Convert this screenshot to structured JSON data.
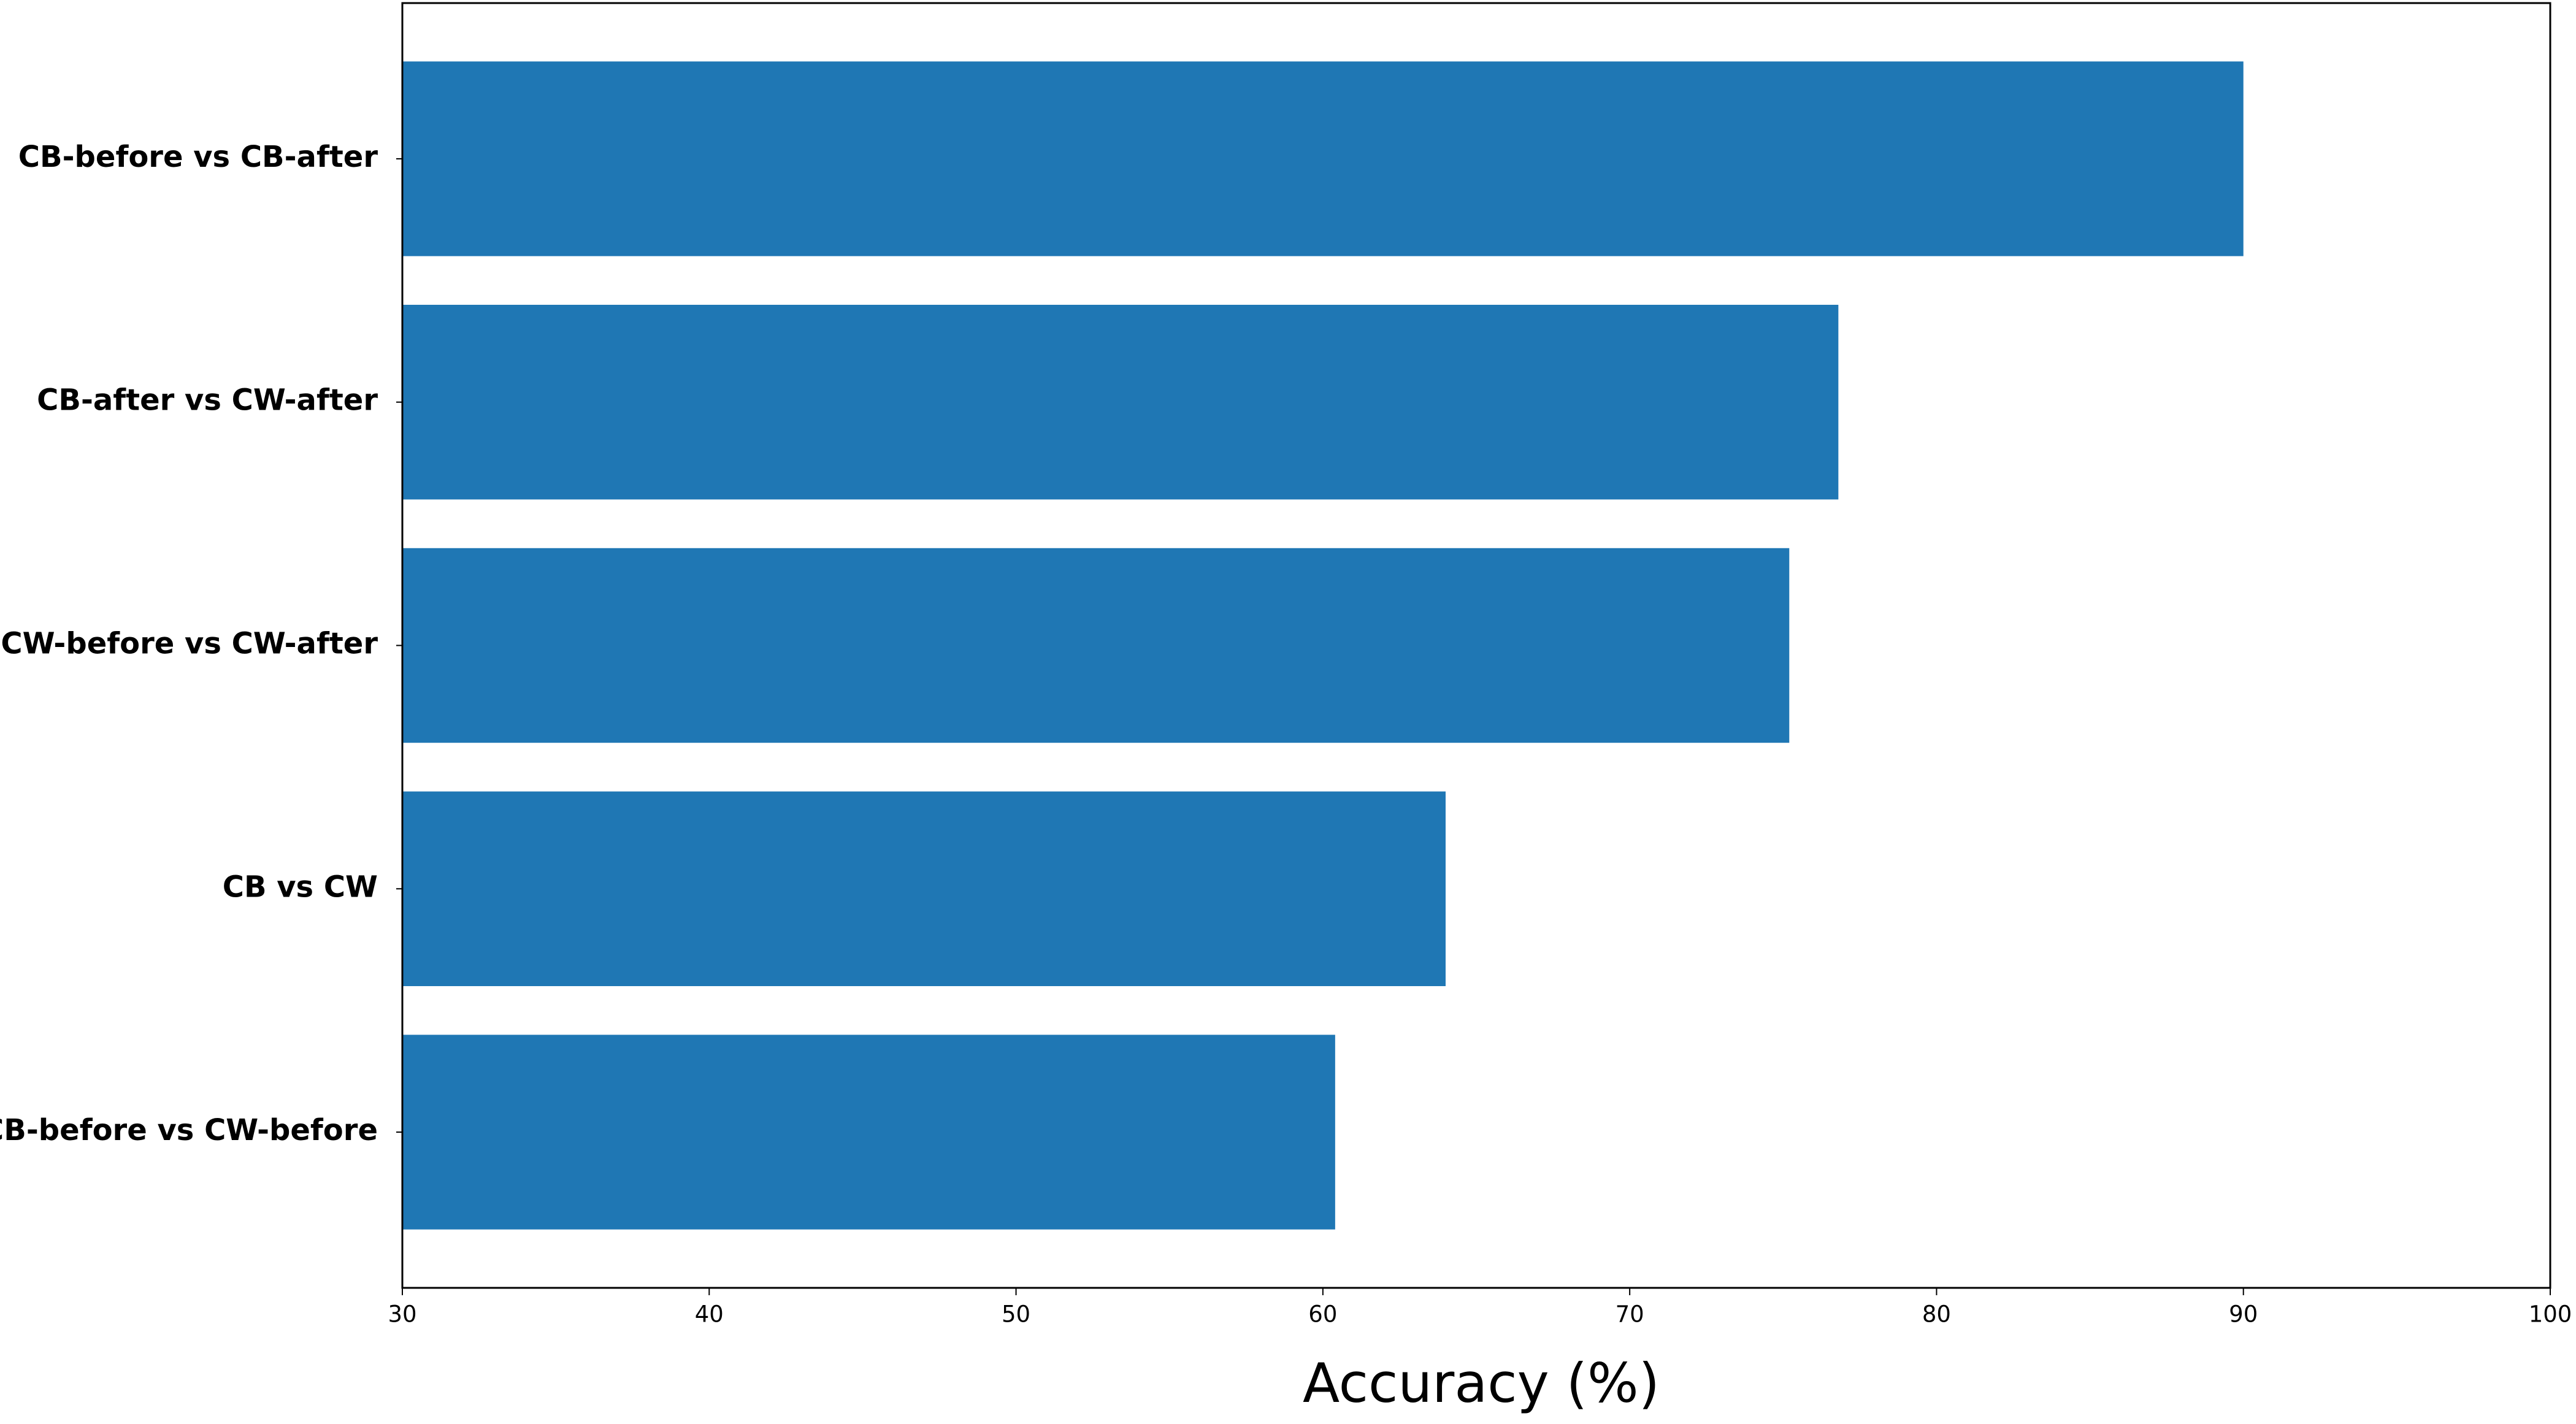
{
  "chart_data": {
    "type": "barh",
    "xlabel": "Accuracy  (%)",
    "categories": [
      "CB-before vs CB-after",
      "CB-after vs CW-after",
      "CW-before vs CW-after",
      "CB vs CW",
      "CB-before vs CW-before"
    ],
    "values": [
      90,
      76.8,
      75.2,
      64,
      60.4
    ],
    "color": "#1f77b4",
    "xlim": [
      30,
      100
    ],
    "xticks": [
      30,
      40,
      50,
      60,
      70,
      80,
      90,
      100
    ]
  }
}
